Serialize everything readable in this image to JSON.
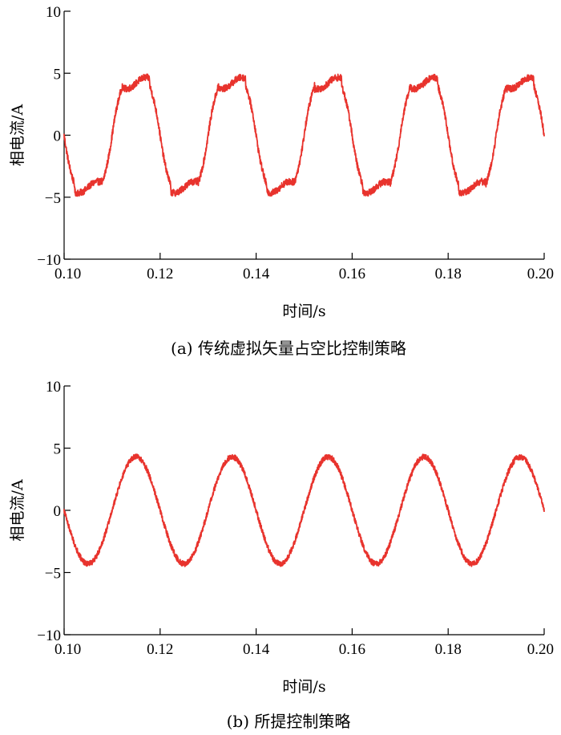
{
  "chart_data": [
    {
      "type": "line",
      "caption": "(a) 传统虚拟矢量占空比控制策略",
      "xlabel": "时间/s",
      "ylabel": "相电流/A",
      "xlim": [
        0.1,
        0.2
      ],
      "ylim": [
        -10,
        10
      ],
      "x_ticks": [
        "0.10",
        "0.12",
        "0.14",
        "0.16",
        "0.18",
        "0.20"
      ],
      "y_ticks": [
        "10",
        "5",
        "0",
        "-5",
        "-10"
      ],
      "grid": false,
      "color": "#e8332d",
      "series": [
        {
          "waveform": "trapezoidal",
          "frequency_hz": 50,
          "amplitude": 4.2,
          "x": [
            0.1,
            0.104,
            0.108,
            0.11,
            0.114,
            0.118,
            0.12,
            0.124,
            0.128,
            0.13,
            0.134,
            0.138,
            0.14,
            0.144,
            0.148,
            0.15,
            0.154,
            0.158,
            0.16,
            0.164,
            0.168,
            0.17,
            0.174,
            0.178,
            0.18,
            0.184,
            0.188,
            0.19,
            0.194,
            0.198,
            0.2
          ],
          "y": [
            -0.5,
            -4.2,
            -3.5,
            0.8,
            4.2,
            3.5,
            -0.8,
            -4.2,
            -3.5,
            0.8,
            4.2,
            3.5,
            -0.8,
            -4.2,
            -3.5,
            0.8,
            4.2,
            3.5,
            -0.8,
            -4.2,
            -3.5,
            0.8,
            4.2,
            3.5,
            -0.8,
            -4.2,
            -3.5,
            0.8,
            4.2,
            3.5,
            -0.5
          ]
        }
      ]
    },
    {
      "type": "line",
      "caption": "(b) 所提控制策略",
      "xlabel": "时间/s",
      "ylabel": "相电流/A",
      "xlim": [
        0.1,
        0.2
      ],
      "ylim": [
        -10,
        10
      ],
      "x_ticks": [
        "0.10",
        "0.12",
        "0.14",
        "0.16",
        "0.18",
        "0.20"
      ],
      "y_ticks": [
        "10",
        "5",
        "0",
        "-5",
        "-10"
      ],
      "grid": false,
      "color": "#e8332d",
      "series": [
        {
          "waveform": "sinusoidal",
          "frequency_hz": 50,
          "amplitude": 4.3,
          "x": [
            0.1,
            0.105,
            0.11,
            0.115,
            0.12,
            0.125,
            0.13,
            0.135,
            0.14,
            0.145,
            0.15,
            0.155,
            0.16,
            0.165,
            0.17,
            0.175,
            0.18,
            0.185,
            0.19,
            0.195,
            0.2
          ],
          "y": [
            0.0,
            -4.3,
            0.0,
            4.3,
            0.0,
            -4.3,
            0.0,
            4.3,
            0.0,
            -4.3,
            0.0,
            4.3,
            0.0,
            -4.3,
            0.0,
            4.3,
            0.0,
            -4.3,
            0.0,
            4.3,
            0.0
          ]
        }
      ]
    }
  ]
}
